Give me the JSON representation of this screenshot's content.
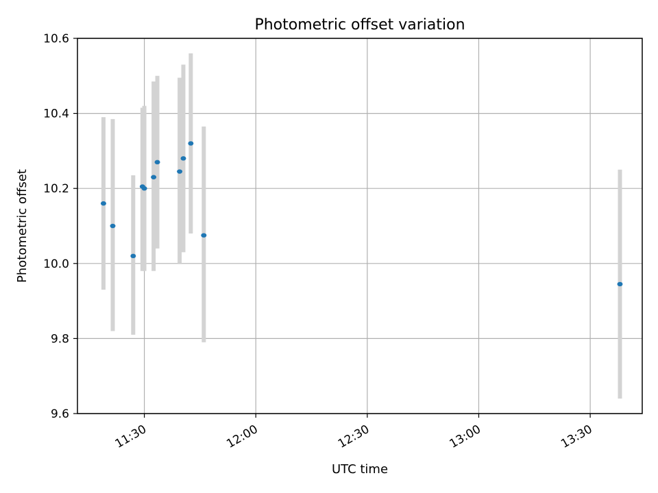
{
  "chart_data": {
    "type": "scatter",
    "title": "Photometric offset variation",
    "xlabel": "UTC time",
    "ylabel": "Photometric offset",
    "x_axis_kind": "time",
    "xlim": [
      "11:12",
      "13:44"
    ],
    "ylim": [
      9.6,
      10.6
    ],
    "x_ticks": [
      "11:30",
      "12:00",
      "12:30",
      "13:00",
      "13:30"
    ],
    "y_ticks": [
      9.6,
      9.8,
      10.0,
      10.2,
      10.4,
      10.6
    ],
    "y_tick_labels": [
      "9.6",
      "9.8",
      "10.0",
      "10.2",
      "10.4",
      "10.6"
    ],
    "grid": true,
    "marker_color": "#1f77b4",
    "errorbar_color": "#d3d3d3",
    "points": [
      {
        "x": "11:19",
        "y": 10.16,
        "ylow": 9.93,
        "yhigh": 10.39
      },
      {
        "x": "11:21.5",
        "y": 10.1,
        "ylow": 9.82,
        "yhigh": 10.385
      },
      {
        "x": "11:27",
        "y": 10.02,
        "ylow": 9.81,
        "yhigh": 10.235
      },
      {
        "x": "11:29.5",
        "y": 10.205,
        "ylow": 9.98,
        "yhigh": 10.415
      },
      {
        "x": "11:30",
        "y": 10.2,
        "ylow": 9.98,
        "yhigh": 10.42
      },
      {
        "x": "11:32.5",
        "y": 10.23,
        "ylow": 9.98,
        "yhigh": 10.485
      },
      {
        "x": "11:33.5",
        "y": 10.27,
        "ylow": 10.04,
        "yhigh": 10.5
      },
      {
        "x": "11:39.5",
        "y": 10.245,
        "ylow": 10.0,
        "yhigh": 10.495
      },
      {
        "x": "11:40.5",
        "y": 10.28,
        "ylow": 10.03,
        "yhigh": 10.53
      },
      {
        "x": "11:42.5",
        "y": 10.32,
        "ylow": 10.08,
        "yhigh": 10.56
      },
      {
        "x": "11:46",
        "y": 10.075,
        "ylow": 9.79,
        "yhigh": 10.365
      },
      {
        "x": "13:38",
        "y": 9.945,
        "ylow": 9.64,
        "yhigh": 10.25
      }
    ]
  }
}
